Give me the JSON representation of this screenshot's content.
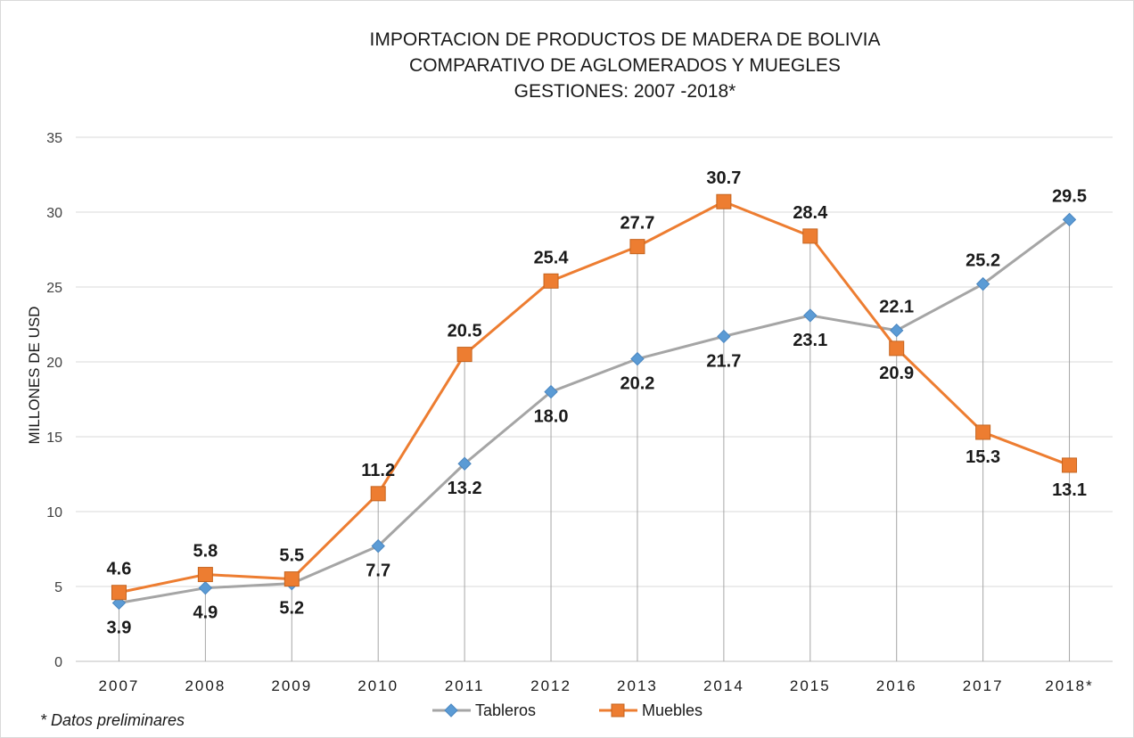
{
  "chart_data": {
    "type": "line",
    "title_lines": [
      "IMPORTACION DE PRODUCTOS DE MADERA DE BOLIVIA",
      "COMPARATIVO DE AGLOMERADOS Y MUEGLES",
      "GESTIONES: 2007 -2018*"
    ],
    "ylabel": "MILLONES DE USD",
    "xlabel": "",
    "categories": [
      "2007",
      "2008",
      "2009",
      "2010",
      "2011",
      "2012",
      "2013",
      "2014",
      "2015",
      "2016",
      "2017",
      "2018*"
    ],
    "ylim": [
      0,
      35
    ],
    "yticks": [
      0,
      5,
      10,
      15,
      20,
      25,
      30,
      35
    ],
    "grid": true,
    "drop_lines": true,
    "series": [
      {
        "name": "Tableros",
        "color": "#a5a5a5",
        "marker": "diamond",
        "marker_color": "#5b9bd5",
        "values": [
          3.9,
          4.9,
          5.2,
          7.7,
          13.2,
          18.0,
          20.2,
          21.7,
          23.1,
          22.1,
          25.2,
          29.5
        ],
        "labels": [
          "3.9",
          "4.9",
          "5.2",
          "7.7",
          "13.2",
          "18.0",
          "20.2",
          "21.7",
          "23.1",
          "22.1",
          "25.2",
          "29.5"
        ]
      },
      {
        "name": "Muebles",
        "color": "#ed7d31",
        "marker": "square",
        "marker_color": "#ed7d31",
        "values": [
          4.6,
          5.8,
          5.5,
          11.2,
          20.5,
          25.4,
          27.7,
          30.7,
          28.4,
          20.9,
          15.3,
          13.1
        ],
        "labels": [
          "4.6",
          "5.8",
          "5.5",
          "11.2",
          "20.5",
          "25.4",
          "27.7",
          "30.7",
          "28.4",
          "20.9",
          "15.3",
          "13.1"
        ]
      }
    ],
    "legend_position": "bottom"
  },
  "footnote": "* Datos preliminares"
}
